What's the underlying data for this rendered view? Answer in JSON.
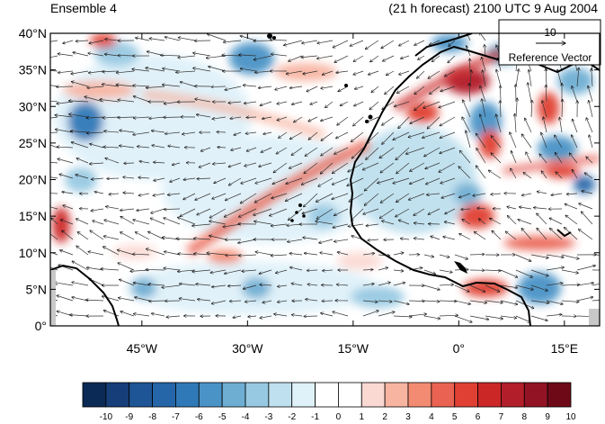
{
  "header": {
    "ensemble_label": "Ensemble 4",
    "forecast_label": "(21 h forecast) 2100 UTC 9 Aug 2004"
  },
  "map": {
    "lon_range": [
      -58,
      20
    ],
    "lat_range": [
      0,
      40
    ],
    "lat_tick_labels": [
      "0°",
      "5°N",
      "10°N",
      "15°N",
      "20°N",
      "25°N",
      "30°N",
      "35°N",
      "40°N"
    ],
    "lon_tick_labels": [
      "45°W",
      "30°W",
      "15°W",
      "0°",
      "15°E"
    ]
  },
  "reference_vector": {
    "magnitude_label": "10",
    "caption": "Reference Vector"
  },
  "colorbar": {
    "labels": [
      "-10",
      "-9",
      "-8",
      "-7",
      "-6",
      "-5",
      "-4",
      "-3",
      "-2",
      "-1",
      "0",
      "1",
      "2",
      "3",
      "4",
      "5",
      "6",
      "7",
      "8",
      "9",
      "10"
    ],
    "colors": [
      "#0b2a55",
      "#163e79",
      "#1e5596",
      "#2566a8",
      "#2f79b8",
      "#4a93c6",
      "#6eaed3",
      "#97c9e2",
      "#bfe0ee",
      "#dff1f9",
      "#ffffff",
      "#ffffff",
      "#fbd9d3",
      "#f7b4a1",
      "#f38b72",
      "#ea6352",
      "#e04033",
      "#cc2727",
      "#b21f2a",
      "#921424",
      "#6e0a18"
    ]
  }
}
